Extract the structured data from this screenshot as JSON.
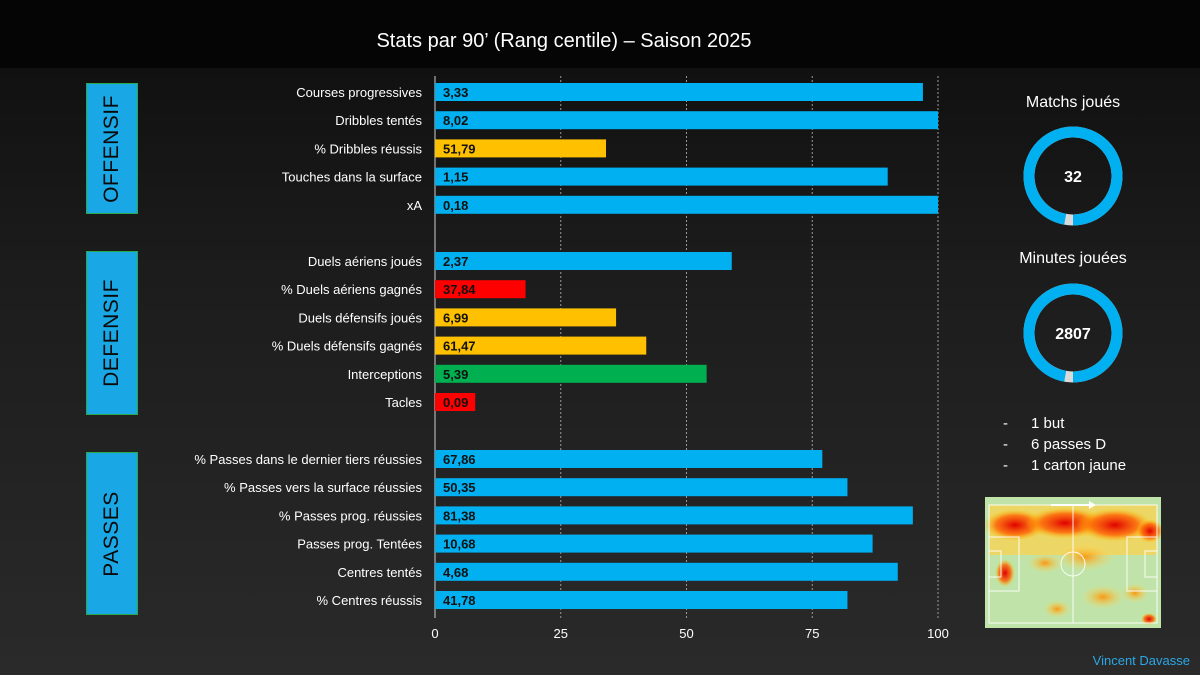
{
  "title": "Stats par 90’ (Rang centile) – Saison 2025",
  "sections": [
    {
      "label": "OFFENSIF"
    },
    {
      "label": "DEFENSIF"
    },
    {
      "label": "PASSES"
    }
  ],
  "colors": {
    "high": "#00b0f0",
    "mid": "#ffc000",
    "low": "#ff0000",
    "green": "#00b050"
  },
  "chart_data": {
    "type": "bar",
    "orientation": "horizontal",
    "title": "Stats par 90’ (Rang centile) – Saison 2025",
    "xlim": [
      0,
      100
    ],
    "xticks": [
      "0",
      "25",
      "50",
      "75",
      "100"
    ],
    "xgrid": "dashed at 25, 50, 75, 100",
    "groups": [
      {
        "section": "OFFENSIF",
        "bars": [
          {
            "label": "Courses progressives",
            "value": "3,33",
            "percentile": 97,
            "color": "high"
          },
          {
            "label": "Dribbles tentés",
            "value": "8,02",
            "percentile": 100,
            "color": "high"
          },
          {
            "label": "% Dribbles réussis",
            "value": "51,79",
            "percentile": 34,
            "color": "mid"
          },
          {
            "label": "Touches dans la surface",
            "value": "1,15",
            "percentile": 90,
            "color": "high"
          },
          {
            "label": "xA",
            "value": "0,18",
            "percentile": 100,
            "color": "high"
          }
        ]
      },
      {
        "section": "DEFENSIF",
        "bars": [
          {
            "label": "Duels aériens joués",
            "value": "2,37",
            "percentile": 59,
            "color": "high"
          },
          {
            "label": "% Duels aériens gagnés",
            "value": "37,84",
            "percentile": 18,
            "color": "low"
          },
          {
            "label": "Duels défensifs joués",
            "value": "6,99",
            "percentile": 36,
            "color": "mid"
          },
          {
            "label": "% Duels défensifs gagnés",
            "value": "61,47",
            "percentile": 42,
            "color": "mid"
          },
          {
            "label": "Interceptions",
            "value": "5,39",
            "percentile": 54,
            "color": "green"
          },
          {
            "label": "Tacles",
            "value": "0,09",
            "percentile": 8,
            "color": "low"
          }
        ]
      },
      {
        "section": "PASSES",
        "bars": [
          {
            "label": "% Passes dans le dernier tiers réussies",
            "value": "67,86",
            "percentile": 77,
            "color": "high"
          },
          {
            "label": "% Passes vers la surface réussies",
            "value": "50,35",
            "percentile": 82,
            "color": "high"
          },
          {
            "label": "% Passes prog. réussies",
            "value": "81,38",
            "percentile": 95,
            "color": "high"
          },
          {
            "label": "Passes prog. Tentées",
            "value": "10,68",
            "percentile": 87,
            "color": "high"
          },
          {
            "label": "Centres tentés",
            "value": "4,68",
            "percentile": 92,
            "color": "high"
          },
          {
            "label": "% Centres réussis",
            "value": "41,78",
            "percentile": 82,
            "color": "high"
          }
        ]
      }
    ]
  },
  "kpis": [
    {
      "title": "Matchs joués",
      "value": "32",
      "fraction": 0.97
    },
    {
      "title": "Minutes jouées",
      "value": "2807",
      "fraction": 0.97
    }
  ],
  "bullets": [
    {
      "dash": "-",
      "text": "1 but"
    },
    {
      "dash": "-",
      "text": "6 passes D"
    },
    {
      "dash": "-",
      "text": "1 carton jaune"
    }
  ],
  "credit": "Vincent Davasse"
}
